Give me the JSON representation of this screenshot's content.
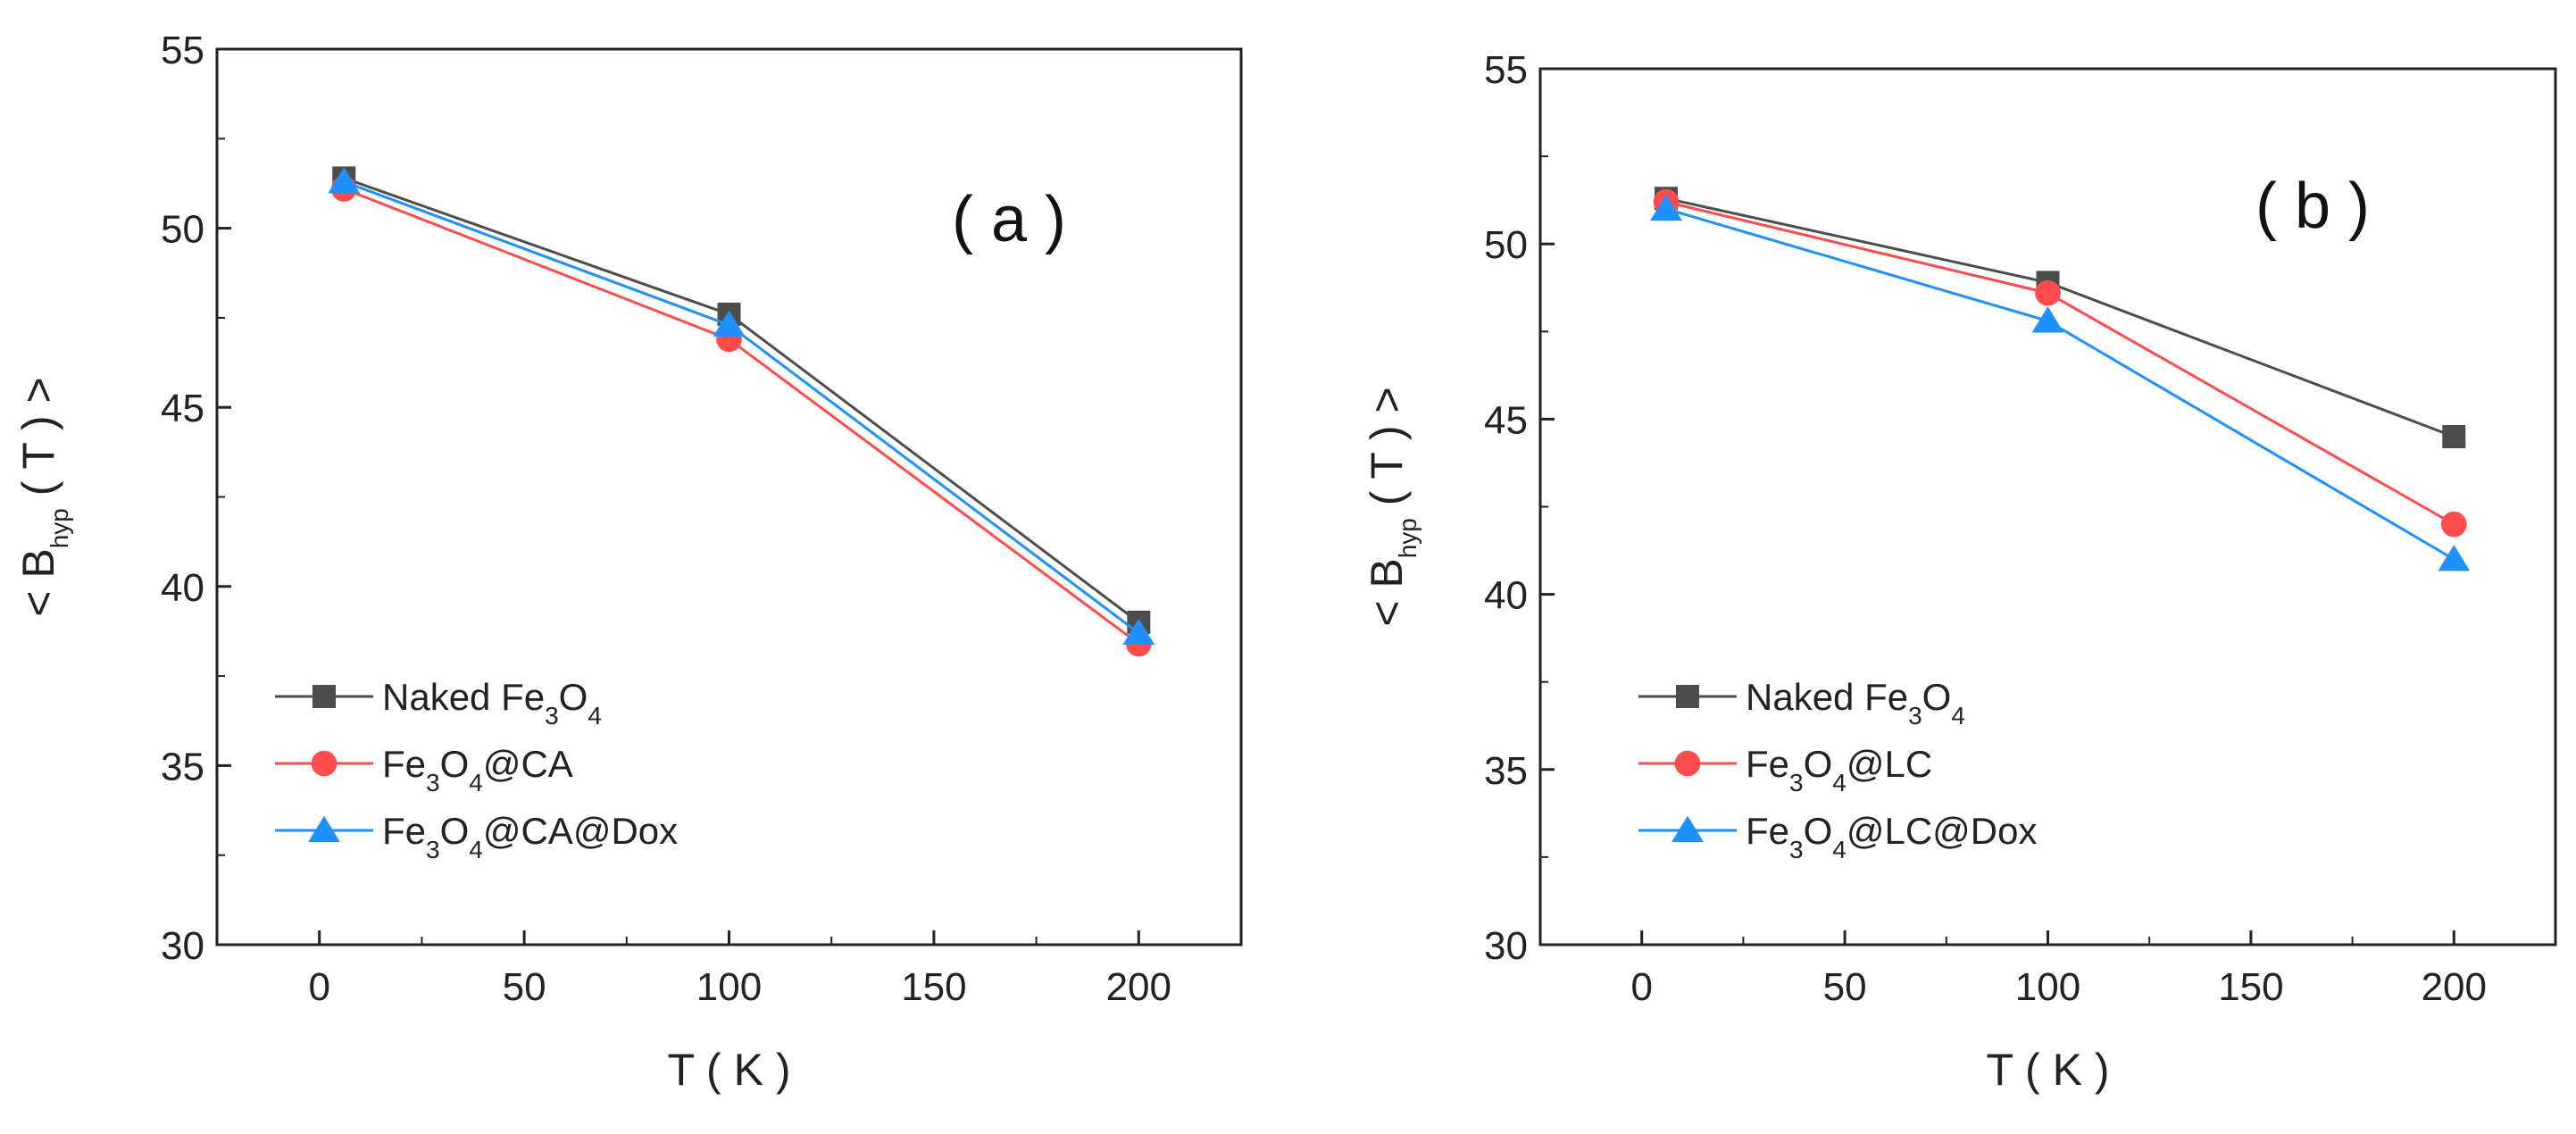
{
  "colors": {
    "naked": "#4d4d4d",
    "ca": "#ff4b4b",
    "dox": "#1e90ff",
    "axis": "#222222"
  },
  "chart_data": [
    {
      "type": "line",
      "panel": "a",
      "panel_label": "( a )",
      "xlabel": "T ( K )",
      "ylabel": {
        "prefix": "< B",
        "sub": "hyp",
        "suffix": " ( T ) >"
      },
      "xlim": [
        -25,
        225
      ],
      "ylim": [
        30,
        55
      ],
      "xticks": [
        "0",
        "50",
        "100",
        "150",
        "200"
      ],
      "yticks": [
        "30",
        "35",
        "40",
        "45",
        "50",
        "55"
      ],
      "legend_position": "bottom-left",
      "series": [
        {
          "name": "Naked Fe3O4",
          "label": {
            "t1": "Naked Fe",
            "s1": "3",
            "t2": "O",
            "s2": "4",
            "t3": ""
          },
          "marker": "square",
          "color_key": "naked",
          "x": [
            6,
            100,
            200
          ],
          "y": [
            51.4,
            47.6,
            39.0
          ]
        },
        {
          "name": "Fe3O4@CA",
          "label": {
            "t1": "Fe",
            "s1": "3",
            "t2": "O",
            "s2": "4",
            "t3": "@CA"
          },
          "marker": "circle",
          "color_key": "ca",
          "x": [
            6,
            100,
            200
          ],
          "y": [
            51.1,
            46.9,
            38.4
          ]
        },
        {
          "name": "Fe3O4@CA@Dox",
          "label": {
            "t1": "Fe",
            "s1": "3",
            "t2": "O",
            "s2": "4",
            "t3": "@CA@Dox"
          },
          "marker": "triangle",
          "color_key": "dox",
          "x": [
            6,
            100,
            200
          ],
          "y": [
            51.3,
            47.3,
            38.7
          ]
        }
      ]
    },
    {
      "type": "line",
      "panel": "b",
      "panel_label": "( b )",
      "xlabel": "T ( K )",
      "ylabel": {
        "prefix": "< B",
        "sub": "hyp",
        "suffix": " ( T ) >"
      },
      "xlim": [
        -25,
        225
      ],
      "ylim": [
        30,
        55
      ],
      "xticks": [
        "0",
        "50",
        "100",
        "150",
        "200"
      ],
      "yticks": [
        "30",
        "35",
        "40",
        "45",
        "50",
        "55"
      ],
      "legend_position": "bottom-left",
      "series": [
        {
          "name": "Naked Fe3O4",
          "label": {
            "t1": "Naked Fe",
            "s1": "3",
            "t2": "O",
            "s2": "4",
            "t3": ""
          },
          "marker": "square",
          "color_key": "naked",
          "x": [
            6,
            100,
            200
          ],
          "y": [
            51.3,
            48.9,
            44.5
          ]
        },
        {
          "name": "Fe3O4@LC",
          "label": {
            "t1": "Fe",
            "s1": "3",
            "t2": "O",
            "s2": "4",
            "t3": "@LC"
          },
          "marker": "circle",
          "color_key": "ca",
          "x": [
            6,
            100,
            200
          ],
          "y": [
            51.2,
            48.6,
            42.0
          ]
        },
        {
          "name": "Fe3O4@LC@Dox",
          "label": {
            "t1": "Fe",
            "s1": "3",
            "t2": "O",
            "s2": "4",
            "t3": "@LC@Dox"
          },
          "marker": "triangle",
          "color_key": "dox",
          "x": [
            6,
            100,
            200
          ],
          "y": [
            51.0,
            47.8,
            41.0
          ]
        }
      ]
    }
  ]
}
